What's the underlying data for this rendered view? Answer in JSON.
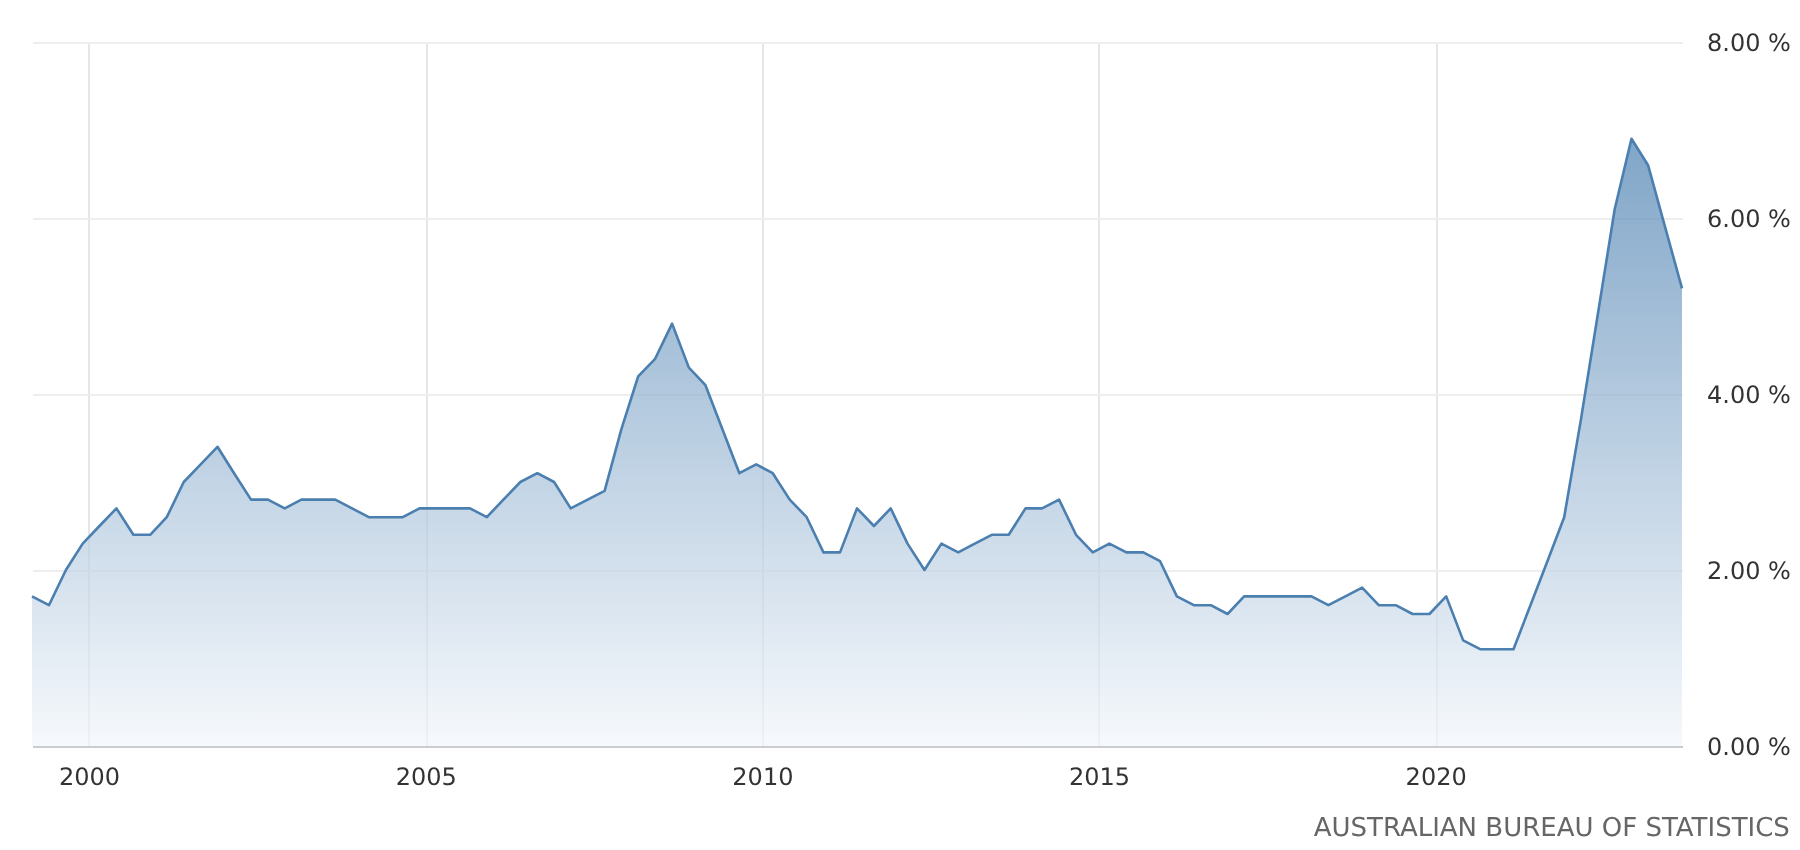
{
  "chart_data": {
    "type": "area",
    "color": "#4a7fb0",
    "x": [
      "1999-03",
      "1999-06",
      "1999-09",
      "1999-12",
      "2000-03",
      "2000-06",
      "2000-09",
      "2000-12",
      "2001-03",
      "2001-06",
      "2001-09",
      "2001-12",
      "2002-03",
      "2002-06",
      "2002-09",
      "2002-12",
      "2003-03",
      "2003-06",
      "2003-09",
      "2003-12",
      "2004-03",
      "2004-06",
      "2004-09",
      "2004-12",
      "2005-03",
      "2005-06",
      "2005-09",
      "2005-12",
      "2006-03",
      "2006-06",
      "2006-09",
      "2006-12",
      "2007-03",
      "2007-06",
      "2007-09",
      "2007-12",
      "2008-03",
      "2008-06",
      "2008-09",
      "2008-12",
      "2009-03",
      "2009-06",
      "2009-09",
      "2009-12",
      "2010-03",
      "2010-06",
      "2010-09",
      "2010-12",
      "2011-03",
      "2011-06",
      "2011-09",
      "2011-12",
      "2012-03",
      "2012-06",
      "2012-09",
      "2012-12",
      "2013-03",
      "2013-06",
      "2013-09",
      "2013-12",
      "2014-03",
      "2014-06",
      "2014-09",
      "2014-12",
      "2015-03",
      "2015-06",
      "2015-09",
      "2015-12",
      "2016-03",
      "2016-06",
      "2016-09",
      "2016-12",
      "2017-03",
      "2017-06",
      "2017-09",
      "2017-12",
      "2018-03",
      "2018-06",
      "2018-09",
      "2018-12",
      "2019-03",
      "2019-06",
      "2019-09",
      "2019-12",
      "2020-03",
      "2020-06",
      "2020-09",
      "2020-12",
      "2021-03",
      "2021-06",
      "2021-09",
      "2021-12",
      "2022-03",
      "2022-06",
      "2022-09",
      "2022-12",
      "2023-03",
      "2023-06",
      "2023-09"
    ],
    "values": [
      1.7,
      1.6,
      2.0,
      2.3,
      2.5,
      2.7,
      2.4,
      2.4,
      2.6,
      3.0,
      3.2,
      3.4,
      3.1,
      2.8,
      2.8,
      2.7,
      2.8,
      2.8,
      2.8,
      2.7,
      2.6,
      2.6,
      2.6,
      2.7,
      2.7,
      2.7,
      2.7,
      2.6,
      2.8,
      3.0,
      3.1,
      3.0,
      2.7,
      2.8,
      2.9,
      3.6,
      4.2,
      4.4,
      4.8,
      4.3,
      4.1,
      3.6,
      3.1,
      3.2,
      3.1,
      2.8,
      2.6,
      2.2,
      2.2,
      2.7,
      2.5,
      2.7,
      2.3,
      2.0,
      2.3,
      2.2,
      2.3,
      2.4,
      2.4,
      2.7,
      2.7,
      2.8,
      2.4,
      2.2,
      2.3,
      2.2,
      2.2,
      2.1,
      1.7,
      1.6,
      1.6,
      1.5,
      1.7,
      1.7,
      1.7,
      1.7,
      1.7,
      1.6,
      1.7,
      1.8,
      1.6,
      1.6,
      1.5,
      1.5,
      1.7,
      1.2,
      1.1,
      1.1,
      1.1,
      1.6,
      2.1,
      2.6,
      3.7,
      4.9,
      6.1,
      6.9,
      6.6,
      5.9,
      5.2
    ],
    "xlim": [
      "1999-03",
      "2023-09"
    ],
    "xticks": [
      {
        "value": "2000",
        "label": "2000"
      },
      {
        "value": "2005",
        "label": "2005"
      },
      {
        "value": "2010",
        "label": "2010"
      },
      {
        "value": "2015",
        "label": "2015"
      },
      {
        "value": "2020",
        "label": "2020"
      }
    ],
    "ylim": [
      0,
      8
    ],
    "yticks": [
      {
        "value": 0,
        "label": "0.00 %"
      },
      {
        "value": 2,
        "label": "2.00 %"
      },
      {
        "value": 4,
        "label": "4.00 %"
      },
      {
        "value": 6,
        "label": "6.00 %"
      },
      {
        "value": 8,
        "label": "8.00 %"
      }
    ],
    "grid": true,
    "annotations": [
      "AUSTRALIAN BUREAU OF STATISTICS"
    ]
  }
}
